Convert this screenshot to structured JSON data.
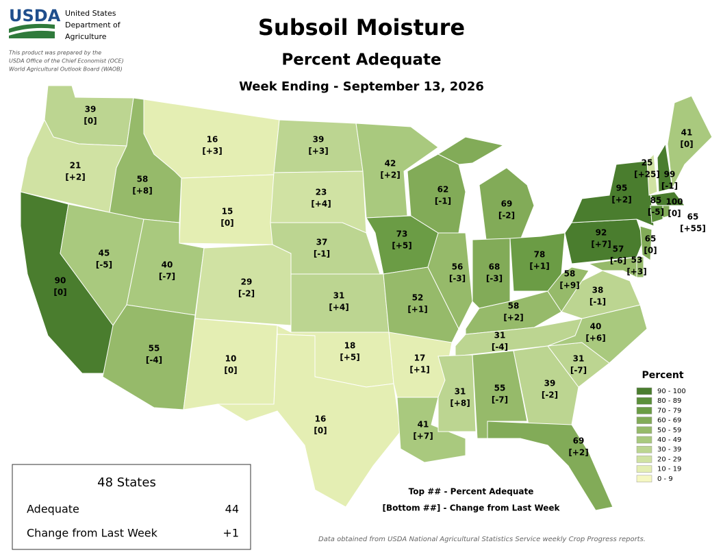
{
  "header": {
    "logo": "USDA",
    "agency": [
      "United States",
      "Department of",
      "Agriculture"
    ],
    "prepared": [
      "This product was prepared by the",
      "USDA Office of the Chief Economist (OCE)",
      "World Agricultural Outlook Board (WAOB)"
    ]
  },
  "title": "Subsoil Moisture",
  "subtitle": "Percent Adequate",
  "week": "Week Ending - September 13, 2026",
  "states": [
    {
      "value": 39,
      "change": {
        "value": 0,
        "label": "[0]"
      }
    },
    {
      "value": 21,
      "change": {
        "value": 2,
        "label": "[+2]"
      }
    },
    {
      "value": 90,
      "change": {
        "value": 0,
        "label": "[0]"
      }
    },
    {
      "value": 58,
      "change": {
        "value": 8,
        "label": "[+8]"
      }
    },
    {
      "value": 45,
      "change": {
        "value": -5,
        "label": "[-5]"
      }
    },
    {
      "value": 16,
      "change": {
        "value": 3,
        "label": "[+3]"
      }
    },
    {
      "value": 15,
      "change": {
        "value": 0,
        "label": "[0]"
      }
    },
    {
      "value": 40,
      "change": {
        "value": -7,
        "label": "[-7]"
      }
    },
    {
      "value": 29,
      "change": {
        "value": -2,
        "label": "[-2]"
      }
    },
    {
      "value": 55,
      "change": {
        "value": -4,
        "label": "[-4]"
      }
    },
    {
      "value": 10,
      "change": {
        "value": 0,
        "label": "[0]"
      }
    },
    {
      "value": 39,
      "change": {
        "value": 3,
        "label": "[+3]"
      }
    },
    {
      "value": 23,
      "change": {
        "value": 4,
        "label": "[+4]"
      }
    },
    {
      "value": 37,
      "change": {
        "value": -1,
        "label": "[-1]"
      }
    },
    {
      "value": 31,
      "change": {
        "value": 4,
        "label": "[+4]"
      }
    },
    {
      "value": 18,
      "change": {
        "value": 5,
        "label": "[+5]"
      }
    },
    {
      "value": 16,
      "change": {
        "value": 0,
        "label": "[0]"
      }
    },
    {
      "value": 42,
      "change": {
        "value": 2,
        "label": "[+2]"
      }
    },
    {
      "value": 73,
      "change": {
        "value": 5,
        "label": "[+5]"
      }
    },
    {
      "value": 52,
      "change": {
        "value": 1,
        "label": "[+1]"
      }
    },
    {
      "value": 17,
      "change": {
        "value": 1,
        "label": "[+1]"
      }
    },
    {
      "value": 41,
      "change": {
        "value": 7,
        "label": "[+7]"
      }
    },
    {
      "value": 62,
      "change": {
        "value": -1,
        "label": "[-1]"
      }
    },
    {
      "value": 56,
      "change": {
        "value": -3,
        "label": "[-3]"
      }
    },
    {
      "value": 69,
      "change": {
        "value": -2,
        "label": "[-2]"
      }
    },
    {
      "value": 68,
      "change": {
        "value": -3,
        "label": "[-3]"
      }
    },
    {
      "value": 78,
      "change": {
        "value": 1,
        "label": "[+1]"
      }
    },
    {
      "value": 58,
      "change": {
        "value": 2,
        "label": "[+2]"
      }
    },
    {
      "value": 31,
      "change": {
        "value": -4,
        "label": "[-4]"
      }
    },
    {
      "value": 31,
      "change": {
        "value": 8,
        "label": "[+8]"
      }
    },
    {
      "value": 55,
      "change": {
        "value": -7,
        "label": "[-7]"
      }
    },
    {
      "value": 39,
      "change": {
        "value": -2,
        "label": "[-2]"
      }
    },
    {
      "value": 69,
      "change": {
        "value": 2,
        "label": "[+2]"
      }
    },
    {
      "value": 31,
      "change": {
        "value": -7,
        "label": "[-7]"
      }
    },
    {
      "value": 40,
      "change": {
        "value": 6,
        "label": "[+6]"
      }
    },
    {
      "value": 38,
      "change": {
        "value": -1,
        "label": "[-1]"
      }
    },
    {
      "value": 58,
      "change": {
        "value": 9,
        "label": "[+9]"
      }
    },
    {
      "value": 92,
      "change": {
        "value": 7,
        "label": "[+7]"
      }
    },
    {
      "value": 95,
      "change": {
        "value": 2,
        "label": "[+2]"
      }
    },
    {
      "value": 57,
      "change": {
        "value": -6,
        "label": "[-6]"
      }
    },
    {
      "value": 53,
      "change": {
        "value": 3,
        "label": "[+3]"
      }
    },
    {
      "value": 65,
      "change": {
        "value": 0,
        "label": "[0]"
      }
    },
    {
      "value": 25,
      "change": {
        "value": 25,
        "label": "[+25]"
      }
    },
    {
      "value": 99,
      "change": {
        "value": -1,
        "label": "[-1]"
      }
    },
    {
      "value": 41,
      "change": {
        "value": 0,
        "label": "[0]"
      }
    },
    {
      "value": 100,
      "change": {
        "value": 0,
        "label": "[0]"
      }
    },
    {
      "value": 85,
      "change": {
        "value": -5,
        "label": "[-5]"
      }
    },
    {
      "value": 65,
      "change": {
        "value": 55,
        "label": "[+55]"
      }
    }
  ],
  "legend": {
    "title": "Percent",
    "items": [
      {
        "label": "90 - 100",
        "min": 90,
        "max": 100,
        "color": "#4a7d2e"
      },
      {
        "label": "80 - 89",
        "min": 80,
        "max": 89,
        "color": "#5b8f3a"
      },
      {
        "label": "70 - 79",
        "min": 70,
        "max": 79,
        "color": "#6b9c45"
      },
      {
        "label": "60 - 69",
        "min": 60,
        "max": 69,
        "color": "#82ab58"
      },
      {
        "label": "50 - 59",
        "min": 50,
        "max": 59,
        "color": "#96ba6a"
      },
      {
        "label": "40 - 49",
        "min": 40,
        "max": 49,
        "color": "#a9c97e"
      },
      {
        "label": "30 - 39",
        "min": 30,
        "max": 39,
        "color": "#bcd591"
      },
      {
        "label": "20 - 29",
        "min": 20,
        "max": 29,
        "color": "#d0e2a3"
      },
      {
        "label": "10 - 19",
        "min": 10,
        "max": 19,
        "color": "#e4eeb3"
      },
      {
        "label": "0 - 9",
        "min": 0,
        "max": 9,
        "color": "#f5f7c2"
      }
    ]
  },
  "summary": {
    "title": "48 States",
    "rows": [
      {
        "label": "Adequate",
        "value": 44
      },
      {
        "label": "Change from Last Week",
        "value": {
          "value": 1,
          "label": "+1"
        }
      }
    ]
  },
  "notes": [
    "Top ## - Percent Adequate",
    "[Bottom ##] - Change from Last Week"
  ],
  "source": "Data obtained from USDA National Agricultural Statistics Service weekly Crop Progress reports."
}
